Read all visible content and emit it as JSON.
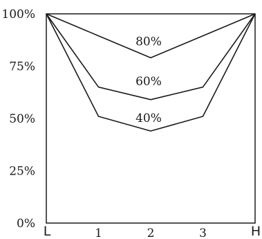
{
  "chart_data": {
    "type": "line",
    "categories": [
      "L",
      "1",
      "2",
      "3",
      "H"
    ],
    "x_ticks": [
      "L",
      "1",
      "2",
      "3",
      "H"
    ],
    "y_ticks": [
      "0%",
      "25%",
      "50%",
      "75%",
      "100%"
    ],
    "ylim": [
      0,
      100
    ],
    "grid": false,
    "series": [
      {
        "name": "80%",
        "values": [
          100,
          89.5,
          79,
          89.5,
          100
        ]
      },
      {
        "name": "60%",
        "values": [
          100,
          65,
          59,
          65,
          100
        ]
      },
      {
        "name": "40%",
        "values": [
          100,
          51,
          44,
          51,
          100
        ]
      }
    ]
  }
}
